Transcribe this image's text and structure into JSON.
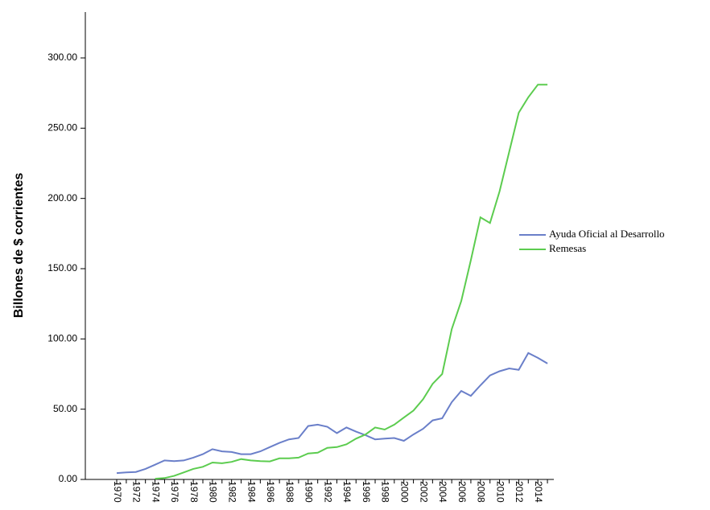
{
  "chart_data": {
    "type": "line",
    "y_label": "Billones de $ corrientes",
    "categories": [
      "1970",
      null,
      "1972",
      null,
      "1974",
      null,
      "1976",
      null,
      "1978",
      null,
      "1980",
      null,
      "1982",
      null,
      "1984",
      null,
      "1986",
      null,
      "1988",
      null,
      "1990",
      null,
      "1992",
      null,
      "1994",
      null,
      "1996",
      null,
      "1998",
      null,
      "2000",
      null,
      "2002",
      null,
      "2004",
      null,
      "2006",
      null,
      "2008",
      null,
      "2010",
      null,
      "2012",
      null,
      "2014",
      null
    ],
    "series": [
      {
        "name": "Ayuda Oficial al Desarrollo",
        "color": "#6a7fc9",
        "values": [
          4.5,
          5,
          5.3,
          7.5,
          10.5,
          13.5,
          13,
          13.5,
          15.5,
          18,
          21.5,
          20,
          19.5,
          18,
          18,
          20,
          23,
          26,
          28.5,
          29.5,
          38,
          39,
          37.5,
          33,
          37,
          34,
          31.5,
          28.5,
          29,
          29.5,
          27.5,
          32,
          36,
          42,
          43.5,
          55,
          63,
          59.5,
          67,
          74,
          77,
          79,
          78,
          90,
          86.5,
          82.5
        ]
      },
      {
        "name": "Remesas",
        "color": "#5ccc4f",
        "values": [
          null,
          null,
          null,
          null,
          0.5,
          1,
          2.5,
          5,
          7.5,
          9,
          12,
          11.5,
          12.5,
          14.5,
          13.5,
          13,
          12.8,
          15,
          15,
          15.5,
          18.5,
          19,
          22.5,
          23,
          25,
          29,
          32,
          37,
          35.5,
          39,
          44,
          49,
          57,
          68,
          75,
          107,
          127,
          156,
          186.5,
          182.5,
          205,
          233,
          261,
          272,
          281,
          281
        ]
      }
    ],
    "ylim": [
      0,
      332
    ],
    "yticks": [
      {
        "value": 0,
        "label": "0.00"
      },
      {
        "value": 50,
        "label": "50.00"
      },
      {
        "value": 100,
        "label": "100.00"
      },
      {
        "value": 150,
        "label": "150.00"
      },
      {
        "value": 200,
        "label": "200.00"
      },
      {
        "value": 250,
        "label": "250.00"
      },
      {
        "value": 300,
        "label": "300.00"
      }
    ],
    "legend": "right"
  }
}
